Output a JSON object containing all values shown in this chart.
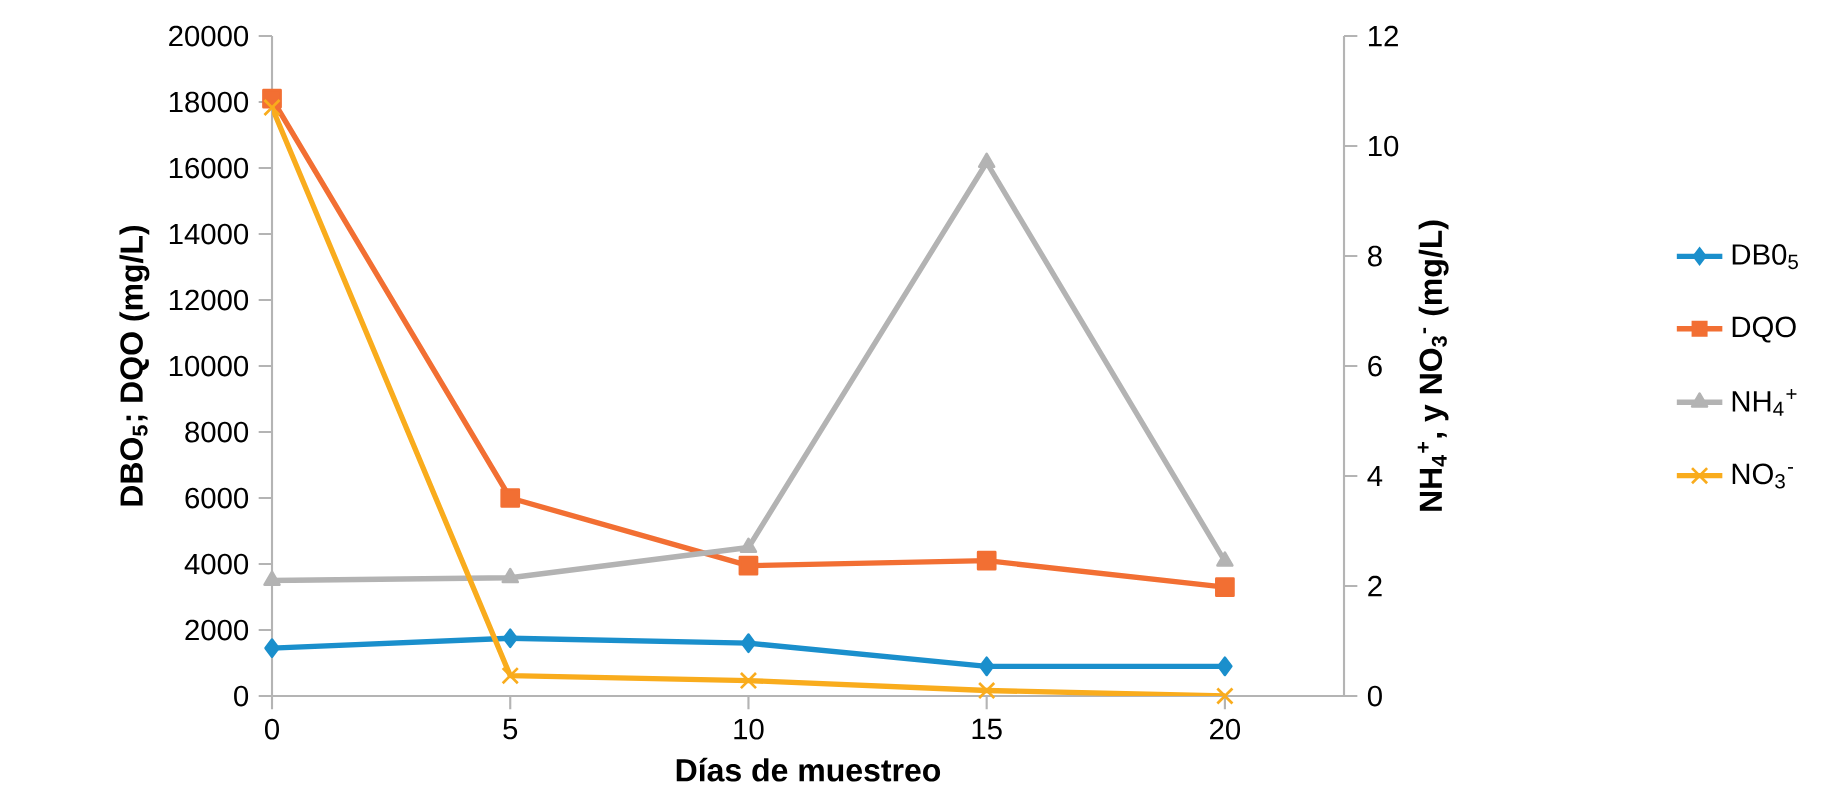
{
  "chart_data": {
    "type": "line",
    "xlabel": "Días de muestreo",
    "ylabel": "DBO$_{5}$; DQO (mg/L)",
    "y2label": "NH$_{4}$$^{+}$, y NO$_{3}$$^{-}$ (mg/L)",
    "x": [
      0,
      5,
      10,
      15,
      20
    ],
    "xlim": [
      0,
      22.5
    ],
    "xticks": [
      0,
      5,
      10,
      15,
      20
    ],
    "ylim": [
      0,
      20000
    ],
    "yticks": [
      0,
      2000,
      4000,
      6000,
      8000,
      10000,
      12000,
      14000,
      16000,
      18000,
      20000
    ],
    "y2lim": [
      0,
      12
    ],
    "y2ticks": [
      0,
      2,
      4,
      6,
      8,
      10,
      12
    ],
    "grid": false,
    "legend": "right",
    "line_style": "solid",
    "series": [
      {
        "name": "DB0$_{5}$",
        "color": "#1a8fcc",
        "marker": "diamond",
        "values": [
          1450,
          1750,
          1600,
          900,
          900
        ]
      },
      {
        "name": "DQO",
        "color": "#f26f33",
        "marker": "square",
        "values": [
          18100,
          6000,
          3950,
          4100,
          3300
        ]
      },
      {
        "name": "NH$_{4}$$^{+}$",
        "color": "#b3b3b3",
        "marker": "triangle",
        "axis": "y2",
        "values": [
          2.1,
          2.15,
          2.7,
          9.7,
          2.45
        ]
      },
      {
        "name": "NO$_{3}$$^{-}$",
        "color": "#f9ac1d",
        "marker": "cross",
        "axis": "y2",
        "values": [
          10.7,
          0.37,
          0.28,
          0.1,
          0
        ]
      }
    ]
  }
}
